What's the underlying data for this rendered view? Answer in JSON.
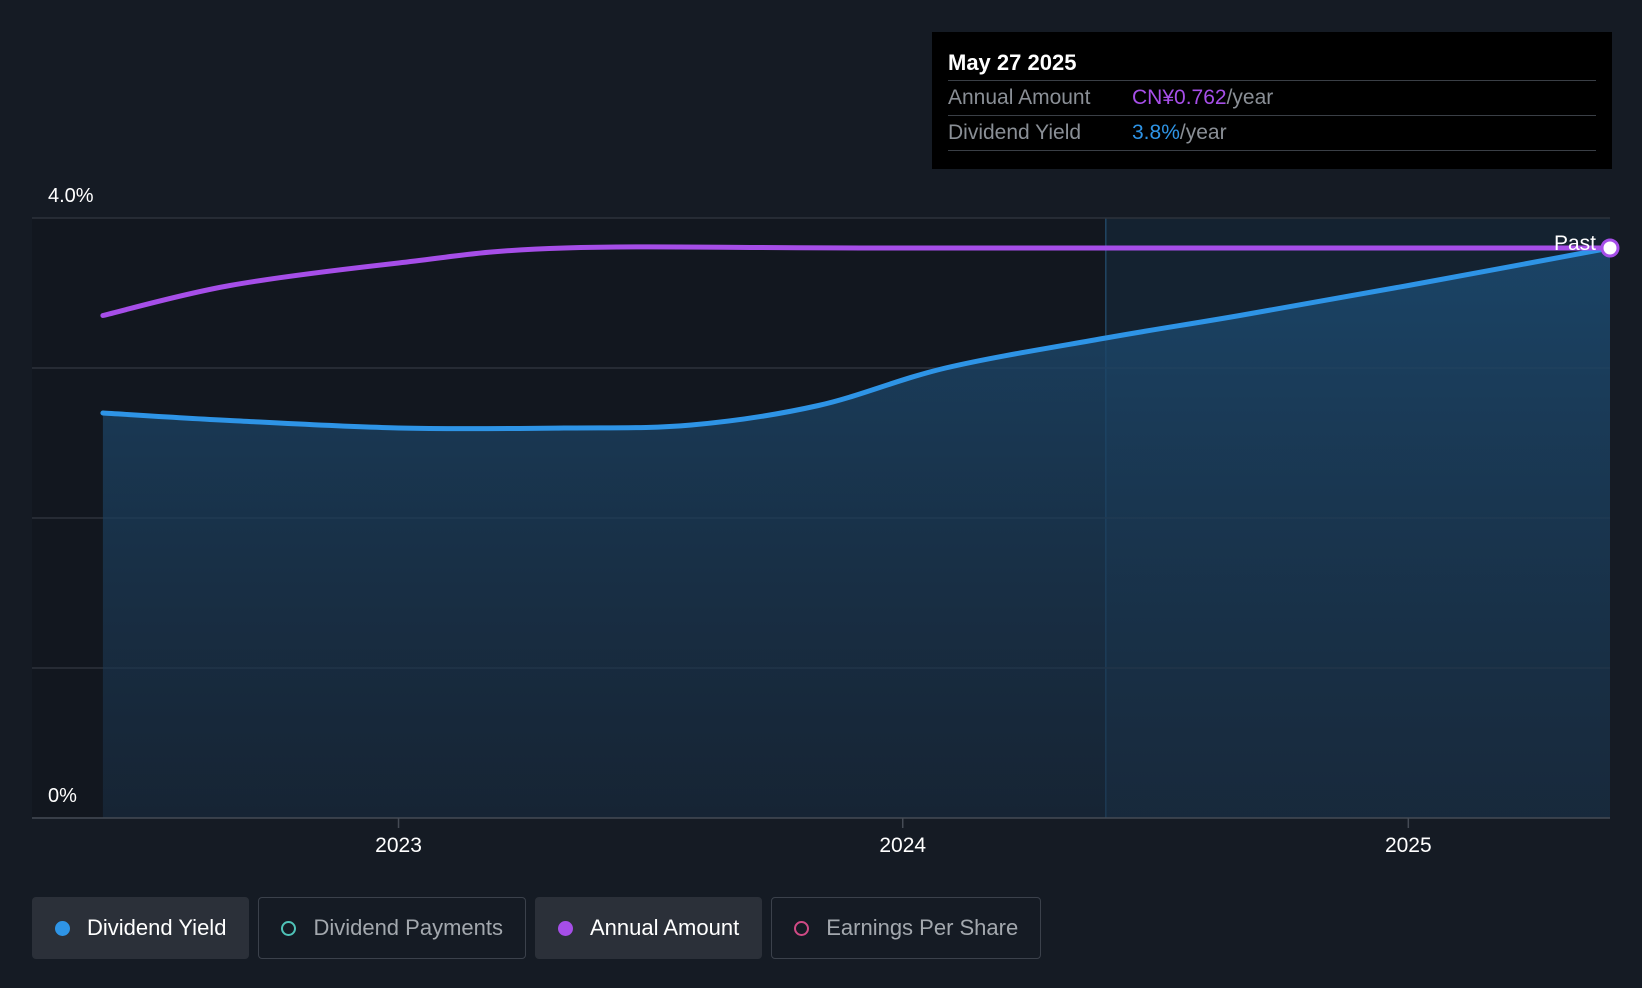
{
  "chart_data": {
    "type": "area",
    "y_tick_labels": [
      "4.0%",
      "0%"
    ],
    "ylim": [
      0,
      4.0
    ],
    "x_tick_labels": [
      "2023",
      "2024",
      "2025"
    ],
    "x_ticks": [
      "2023-01-01",
      "2024-01-01",
      "2025-01-01"
    ],
    "xlim": [
      "2022-05-27",
      "2025-05-27"
    ],
    "past_marker_label": "Past",
    "past_region_start": "2024-05-27",
    "series": [
      {
        "name": "Dividend Yield",
        "color": "#2e94e6",
        "style": "area",
        "x": [
          "2022-06-01",
          "2022-09-01",
          "2023-01-01",
          "2023-05-01",
          "2023-08-01",
          "2023-11-01",
          "2024-02-01",
          "2024-05-27",
          "2024-09-01",
          "2025-01-01",
          "2025-05-27"
        ],
        "values": [
          2.7,
          2.65,
          2.6,
          2.6,
          2.62,
          2.75,
          3.0,
          3.2,
          3.35,
          3.55,
          3.8
        ]
      },
      {
        "name": "Annual Amount",
        "color": "#a64ee8",
        "style": "line",
        "x": [
          "2022-06-01",
          "2022-09-01",
          "2023-01-01",
          "2023-05-01",
          "2024-01-01",
          "2025-05-27"
        ],
        "values": [
          3.35,
          3.55,
          3.7,
          3.8,
          3.8,
          3.8
        ]
      }
    ]
  },
  "tooltip": {
    "date": "May 27 2025",
    "rows": [
      {
        "label": "Annual Amount",
        "value": "CN¥0.762",
        "unit": "/year",
        "color": "#a64ee8"
      },
      {
        "label": "Dividend Yield",
        "value": "3.8%",
        "unit": "/year",
        "color": "#2e94e6"
      }
    ]
  },
  "legend": [
    {
      "label": "Dividend Yield",
      "color": "#2e94e6",
      "active": true,
      "filled": true
    },
    {
      "label": "Dividend Payments",
      "color": "#4fc3b8",
      "active": false,
      "filled": false
    },
    {
      "label": "Annual Amount",
      "color": "#a64ee8",
      "active": true,
      "filled": true
    },
    {
      "label": "Earnings Per Share",
      "color": "#d04a85",
      "active": false,
      "filled": false
    }
  ]
}
